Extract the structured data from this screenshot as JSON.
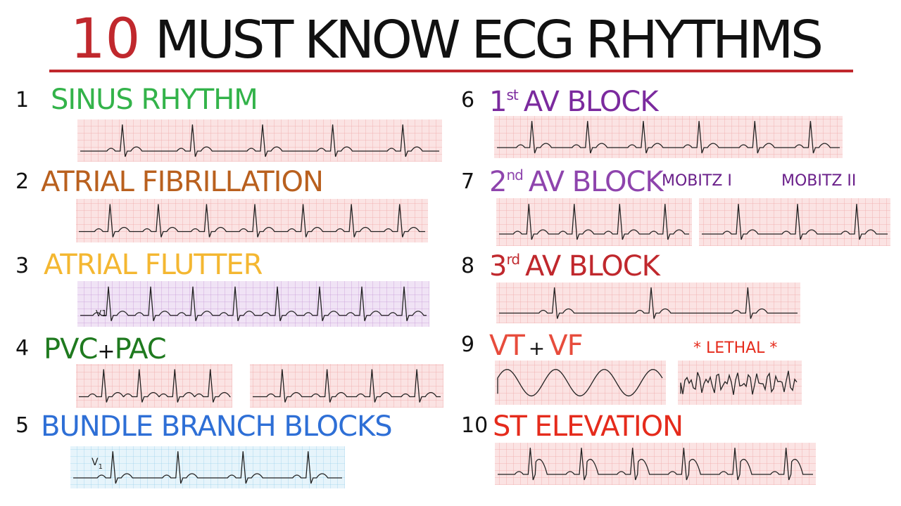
{
  "header": {
    "number": "10",
    "title": "MUST KNOW ECG RHYTHMS"
  },
  "rhythms": [
    {
      "number": "1",
      "label": "SINUS RHYTHM"
    },
    {
      "number": "2",
      "label": "ATRIAL FIBRILLATION"
    },
    {
      "number": "3",
      "label": "ATRIAL FLUTTER",
      "lead": "V1"
    },
    {
      "number": "4",
      "label": "PVC",
      "joiner": "+",
      "label2": "PAC"
    },
    {
      "number": "5",
      "label": "BUNDLE BRANCH BLOCKS",
      "lead": "V",
      "lead_sub": "1"
    },
    {
      "number": "6",
      "ordinal": "1",
      "suffix": "st",
      "label": "AV BLOCK"
    },
    {
      "number": "7",
      "ordinal": "2",
      "suffix": "nd",
      "label": "AV BLOCK",
      "annotations": [
        "MOBITZ I",
        "MOBITZ II"
      ]
    },
    {
      "number": "8",
      "ordinal": "3",
      "suffix": "rd",
      "label": "AV BLOCK"
    },
    {
      "number": "9",
      "label": "VT",
      "joiner": "+",
      "label2": "VF",
      "annotation": "* LETHAL *"
    },
    {
      "number": "10",
      "label": "ST ELEVATION"
    }
  ]
}
